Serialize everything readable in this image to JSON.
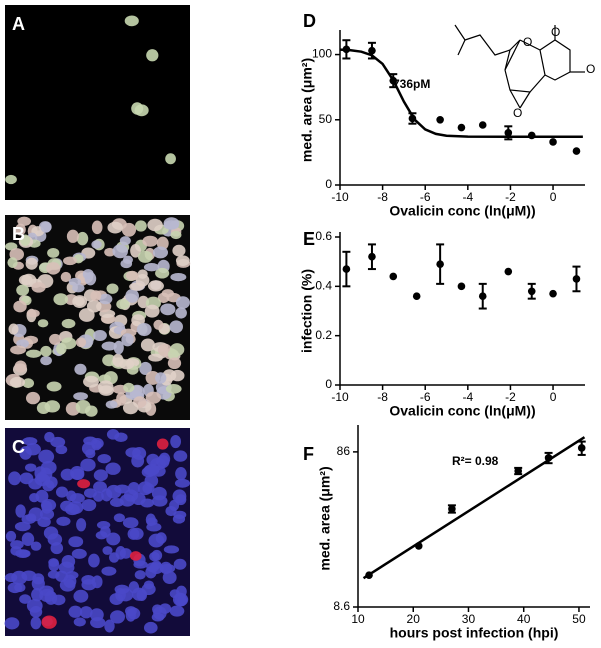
{
  "images": [
    {
      "label": "A"
    },
    {
      "label": "B"
    },
    {
      "label": "C"
    }
  ],
  "structure": {
    "atoms": [
      "O",
      "O",
      "O",
      "O"
    ]
  },
  "chart_data": [
    {
      "type": "scatter",
      "panel": "D",
      "xlabel": "Ovalicin conc (ln(μM))",
      "ylabel": "med. area (μm²)",
      "annotation": "736pM",
      "xlim": [
        -10,
        1.5
      ],
      "xticks": [
        -10,
        -8,
        -6,
        -4,
        -2,
        0
      ],
      "ylim": [
        0,
        115
      ],
      "yticks": [
        0,
        50,
        100
      ],
      "series": [
        {
          "color": "#000000",
          "x": [
            -9.7,
            -8.5,
            -7.5,
            -6.6,
            -5.3,
            -4.3,
            -3.3,
            -2.1,
            -1.0,
            0.0,
            1.1
          ],
          "values": [
            104,
            103,
            80,
            51,
            50,
            44,
            46,
            40,
            38,
            33,
            26
          ],
          "errors": [
            7,
            6,
            5,
            4,
            null,
            null,
            null,
            5,
            null,
            null,
            null
          ]
        }
      ],
      "fit": {
        "x": [
          -10,
          -9.5,
          -9,
          -8.5,
          -8,
          -7.5,
          -7,
          -6.5,
          -6,
          -5.5,
          -5,
          -4,
          -2,
          0,
          1.4
        ],
        "values": [
          103.8,
          103.3,
          102.2,
          99.4,
          92.8,
          80.3,
          63.9,
          50.2,
          42.6,
          39.2,
          37.8,
          37.1,
          37,
          37,
          37
        ]
      }
    },
    {
      "type": "scatter",
      "panel": "E",
      "xlabel": "Ovalicin conc (ln(μM))",
      "ylabel": "infection (%)",
      "xlim": [
        -10,
        1.5
      ],
      "xticks": [
        -10,
        -8,
        -6,
        -4,
        -2,
        0
      ],
      "ylim": [
        0,
        0.6
      ],
      "yticks": [
        0,
        0.2,
        0.4,
        0.6
      ],
      "series": [
        {
          "color": "#000000",
          "x": [
            -9.7,
            -8.5,
            -7.5,
            -6.4,
            -5.3,
            -4.3,
            -3.3,
            -2.1,
            -1.0,
            0.0,
            1.1
          ],
          "values": [
            0.47,
            0.52,
            0.44,
            0.36,
            0.49,
            0.4,
            0.36,
            0.46,
            0.38,
            0.37,
            0.43
          ],
          "errors": [
            0.07,
            0.05,
            null,
            null,
            0.08,
            null,
            0.05,
            null,
            0.03,
            null,
            0.05
          ]
        }
      ]
    },
    {
      "type": "scatter",
      "panel": "F",
      "xlabel": "hours post infection (hpi)",
      "ylabel": "med. area (μm²)",
      "annotation": "R²= 0.98",
      "ylog": true,
      "xlim": [
        10,
        52
      ],
      "xticks": [
        10,
        20,
        30,
        40,
        50
      ],
      "ylim": [
        8.6,
        119
      ],
      "yticks": [
        8.6,
        86
      ],
      "series": [
        {
          "color": "#000000",
          "x": [
            12,
            21,
            27,
            39,
            44.5,
            50.5
          ],
          "values": [
            13.8,
            21.3,
            36.9,
            64.8,
            78.7,
            91.2
          ],
          "errors": [
            null,
            null,
            2,
            3,
            6,
            9
          ]
        }
      ],
      "fit": {
        "x": [
          11,
          51
        ],
        "values": [
          13.2,
          107
        ]
      }
    }
  ]
}
